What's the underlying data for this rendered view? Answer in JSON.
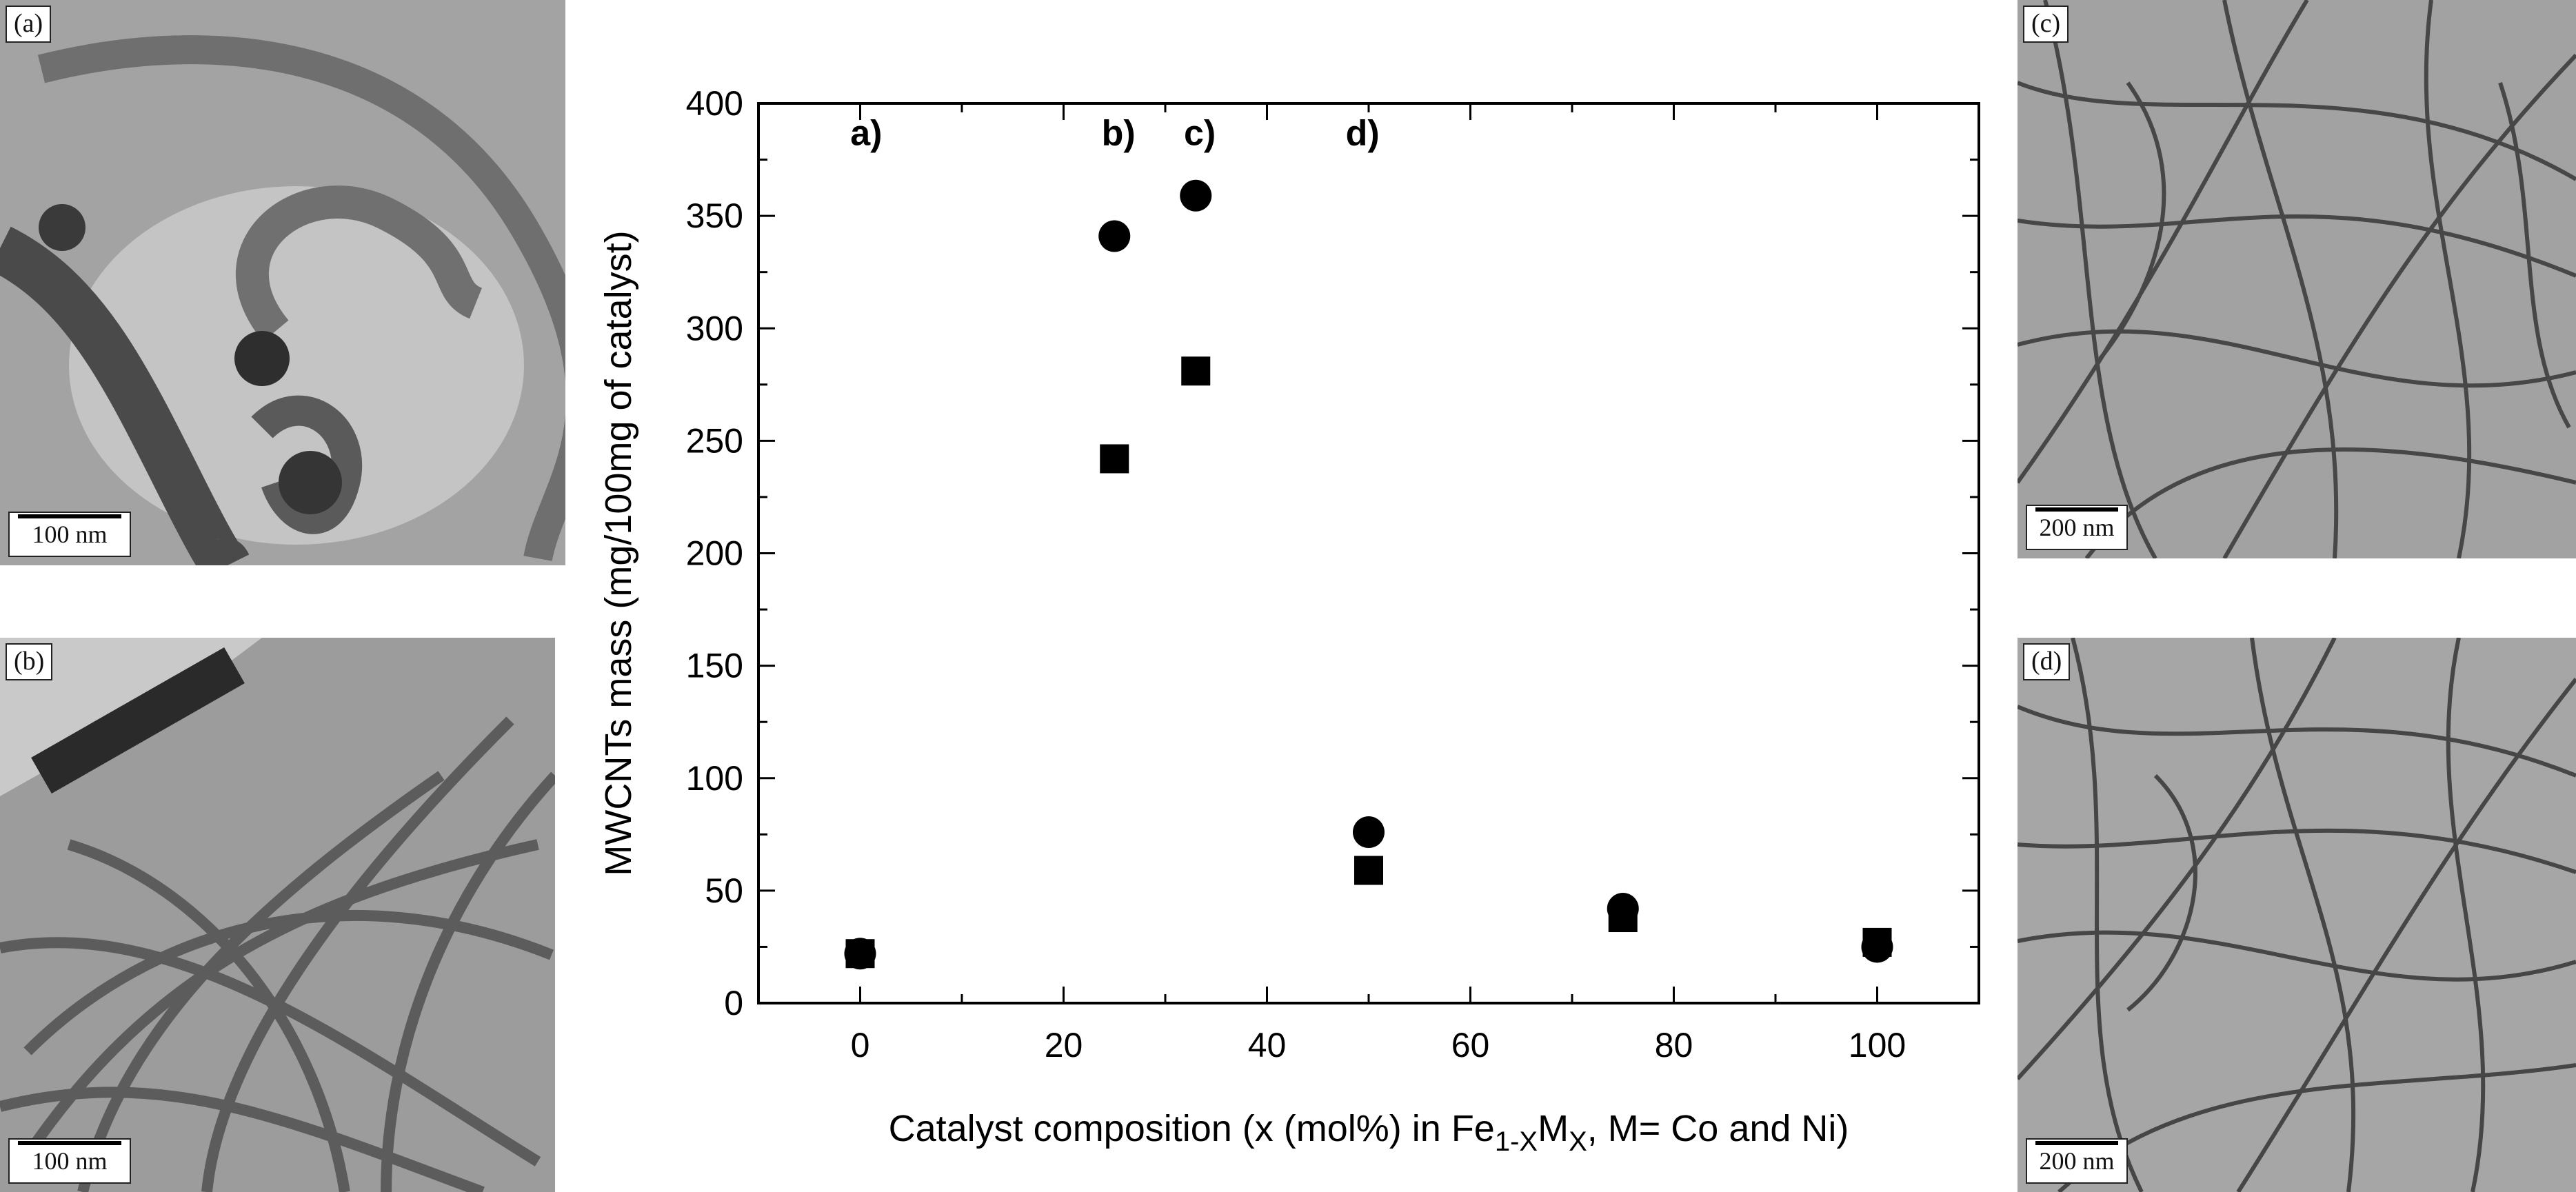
{
  "panels": [
    {
      "id": "a",
      "label": "(a)",
      "scale": "100 nm"
    },
    {
      "id": "b",
      "label": "(b)",
      "scale": "100 nm"
    },
    {
      "id": "c",
      "label": "(c)",
      "scale": "200 nm"
    },
    {
      "id": "d",
      "label": "(d)",
      "scale": "200 nm"
    }
  ],
  "chart_data": {
    "type": "scatter",
    "title": "",
    "xlabel": "Catalyst composition (x (mol%) in Fe",
    "xlabel_sub1": "1-X",
    "xlabel_mid": "M",
    "xlabel_sub2": "X",
    "xlabel_tail": ", M= Co and Ni)",
    "ylabel": "MWCNTs mass (mg/100mg of catalyst)",
    "xlim": [
      -10,
      110
    ],
    "ylim": [
      0,
      400
    ],
    "xticks": [
      0,
      20,
      40,
      60,
      80,
      100
    ],
    "yticks": [
      0,
      50,
      100,
      150,
      200,
      250,
      300,
      350,
      400
    ],
    "grid": false,
    "series": [
      {
        "marker": "circle",
        "x": [
          0,
          25,
          33,
          50,
          75,
          100
        ],
        "y": [
          22,
          341,
          359,
          76,
          42,
          25
        ]
      },
      {
        "marker": "square",
        "x": [
          0,
          25,
          33,
          50,
          75,
          100
        ],
        "y": [
          22,
          242,
          281,
          59,
          38,
          27
        ]
      }
    ],
    "annotations": [
      {
        "text": "a)",
        "x": 0.6,
        "y": 387
      },
      {
        "text": "b)",
        "x": 25.4,
        "y": 387
      },
      {
        "text": "c)",
        "x": 33.4,
        "y": 387
      },
      {
        "text": "d)",
        "x": 49.4,
        "y": 387
      }
    ],
    "colors": {
      "marker": "#000000",
      "axis": "#000000"
    }
  }
}
